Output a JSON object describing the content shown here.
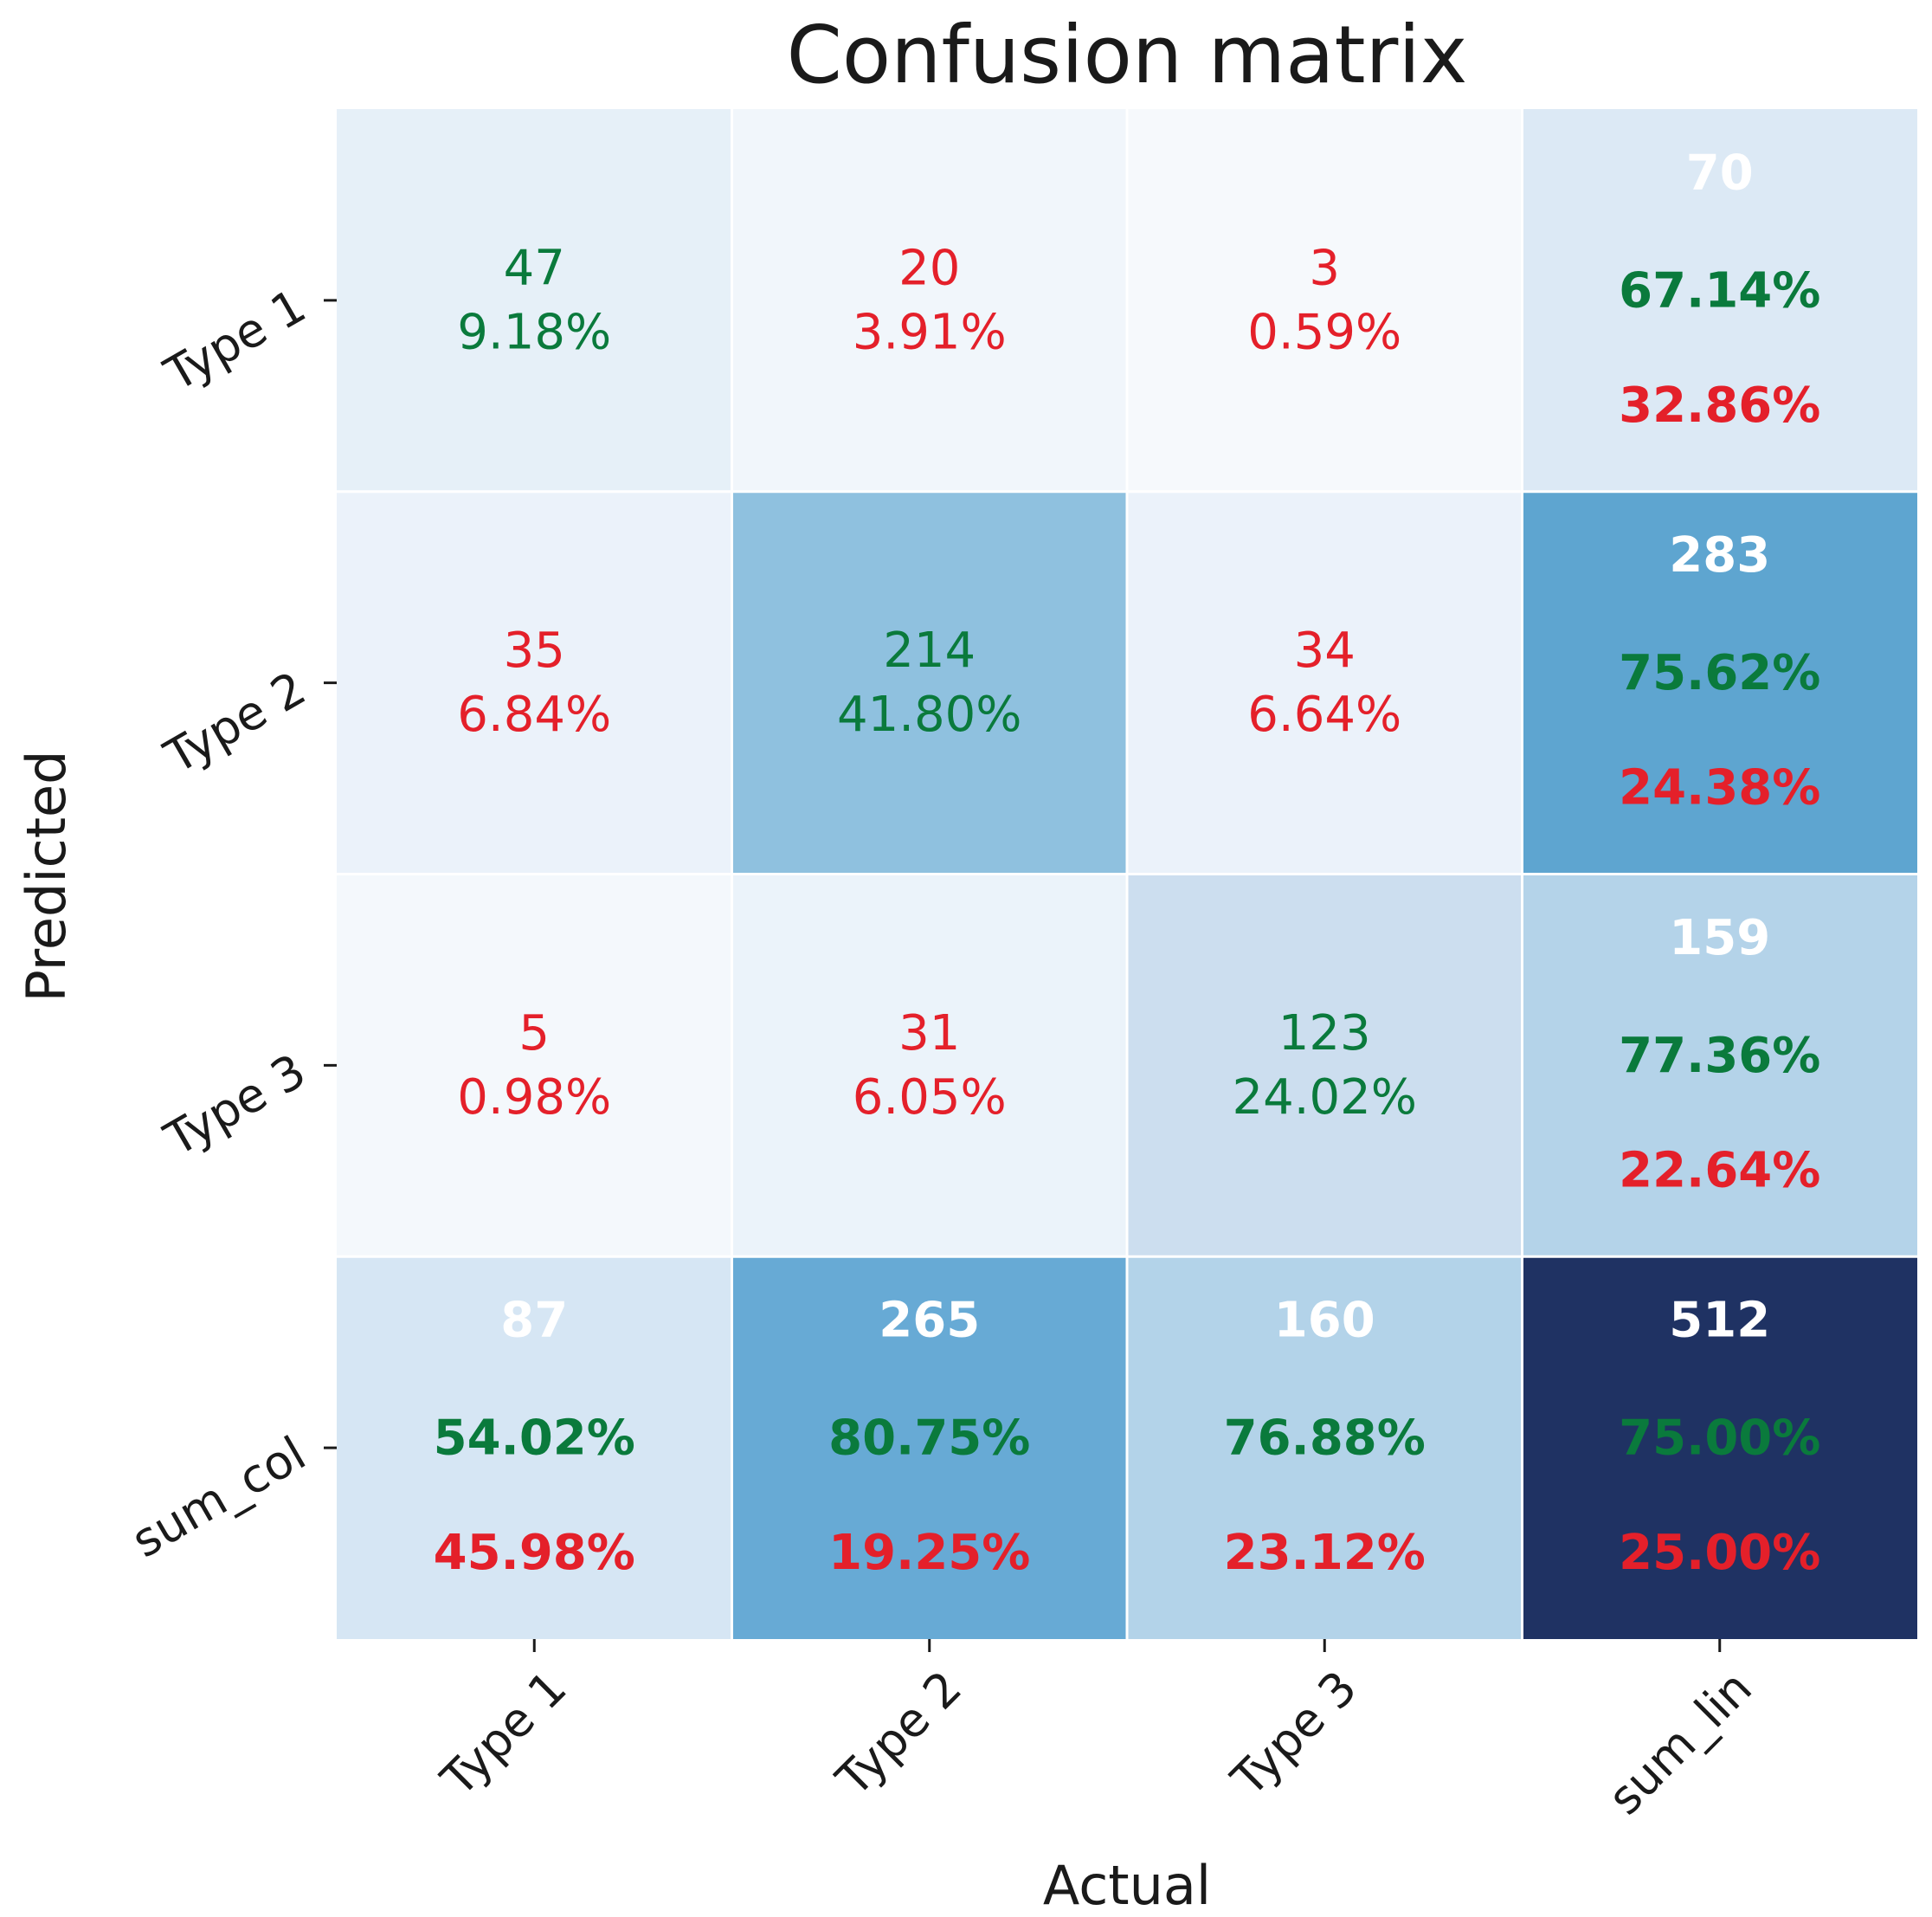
{
  "chart_data": {
    "type": "heatmap",
    "title": "Confusion matrix",
    "xlabel": "Actual",
    "ylabel": "Predicted",
    "x_categories": [
      "Type 1",
      "Type 2",
      "Type 3",
      "sum_lin"
    ],
    "y_categories": [
      "Type 1",
      "Type 2",
      "Type 3",
      "sum_col"
    ],
    "colors": {
      "good": "#0a7a3c",
      "bad": "#e4202a",
      "total": "#ffffff",
      "grid": "#ffffff",
      "axis_text": "#1a1a1a"
    },
    "rows": [
      [
        {
          "count": "47",
          "pct": "9.18%",
          "status": "good",
          "kind": "cell",
          "fill": "#e6f0f8"
        },
        {
          "count": "20",
          "pct": "3.91%",
          "status": "bad",
          "kind": "cell",
          "fill": "#f1f6fb"
        },
        {
          "count": "3",
          "pct": "0.59%",
          "status": "bad",
          "kind": "cell",
          "fill": "#f6f9fc"
        },
        {
          "count": "70",
          "good": "67.14%",
          "bad": "32.86%",
          "kind": "sum",
          "fill": "#dce9f5"
        }
      ],
      [
        {
          "count": "35",
          "pct": "6.84%",
          "status": "bad",
          "kind": "cell",
          "fill": "#ebf2fa"
        },
        {
          "count": "214",
          "pct": "41.80%",
          "status": "good",
          "kind": "cell",
          "fill": "#8fc1df"
        },
        {
          "count": "34",
          "pct": "6.64%",
          "status": "bad",
          "kind": "cell",
          "fill": "#ebf2fa"
        },
        {
          "count": "283",
          "good": "75.62%",
          "bad": "24.38%",
          "kind": "sum",
          "fill": "#5ea5d0"
        }
      ],
      [
        {
          "count": "5",
          "pct": "0.98%",
          "status": "bad",
          "kind": "cell",
          "fill": "#f4f8fc"
        },
        {
          "count": "31",
          "pct": "6.05%",
          "status": "bad",
          "kind": "cell",
          "fill": "#ebf3fa"
        },
        {
          "count": "123",
          "pct": "24.02%",
          "status": "good",
          "kind": "cell",
          "fill": "#ccdeef"
        },
        {
          "count": "159",
          "good": "77.36%",
          "bad": "22.64%",
          "kind": "sum",
          "fill": "#b4d3e9"
        }
      ],
      [
        {
          "count": "87",
          "good": "54.02%",
          "bad": "45.98%",
          "kind": "sum",
          "fill": "#d6e6f4"
        },
        {
          "count": "265",
          "good": "80.75%",
          "bad": "19.25%",
          "kind": "sum",
          "fill": "#67aad5"
        },
        {
          "count": "160",
          "good": "76.88%",
          "bad": "23.12%",
          "kind": "sum",
          "fill": "#b3d3e9"
        },
        {
          "count": "512",
          "good": "75.00%",
          "bad": "25.00%",
          "kind": "sum",
          "fill": "#1f3263"
        }
      ]
    ]
  }
}
